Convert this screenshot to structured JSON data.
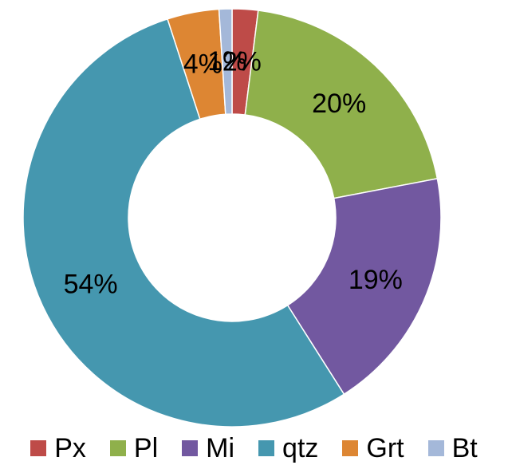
{
  "chart_data": {
    "type": "pie",
    "donut": true,
    "categories": [
      "Px",
      "Pl",
      "Mi",
      "qtz",
      "Grt",
      "Bt"
    ],
    "values": [
      2,
      20,
      19,
      54,
      4,
      1
    ],
    "data_labels": [
      "2%",
      "20%",
      "19%",
      "54%",
      "4%",
      "1%"
    ],
    "colors": [
      "#BE4B48",
      "#8FB04B",
      "#7258A0",
      "#4597AF",
      "#DD8633",
      "#A4B8D9"
    ],
    "legend_position": "bottom",
    "title": ""
  }
}
